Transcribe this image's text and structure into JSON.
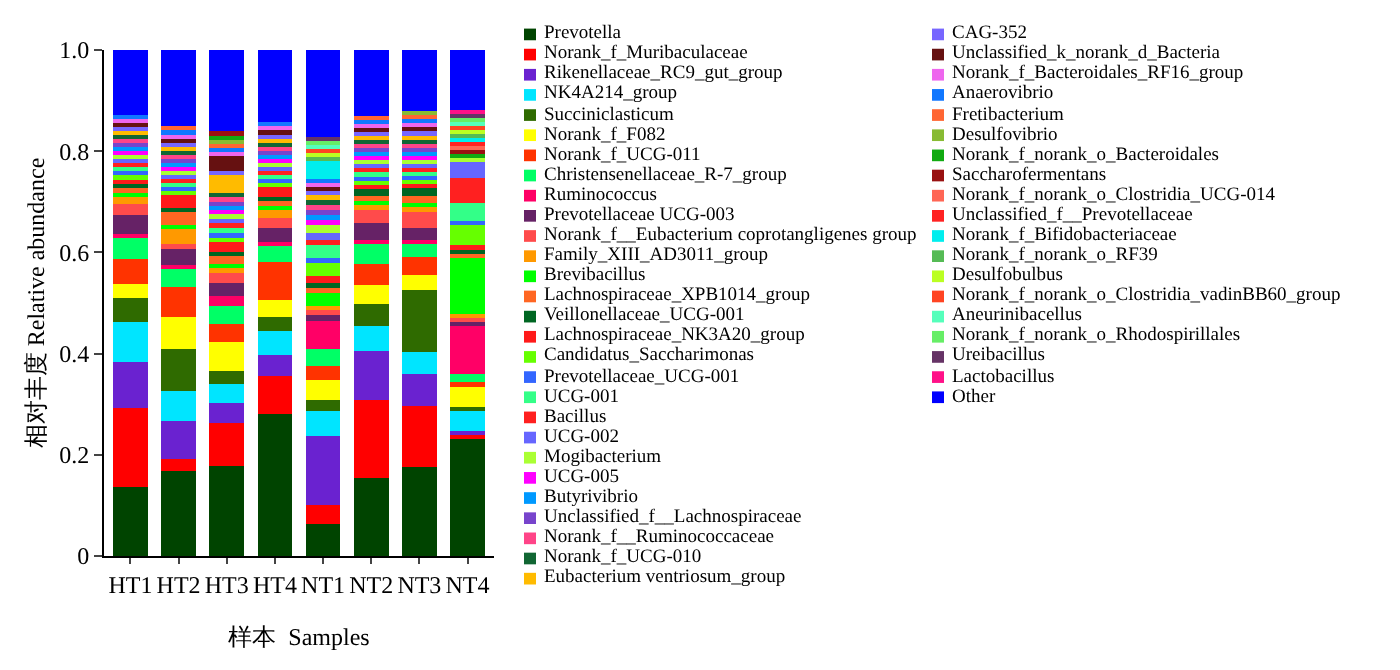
{
  "chart_data": {
    "type": "bar",
    "stacked": true,
    "xlabel": "样本  Samples",
    "ylabel": "相对丰度 Relative abundance",
    "categories": [
      "HT1",
      "HT2",
      "HT3",
      "HT4",
      "NT1",
      "NT2",
      "NT3",
      "NT4"
    ],
    "ylim": [
      0,
      1
    ],
    "yticks": [
      0,
      0.2,
      0.4,
      0.6,
      0.8,
      {
        "value": 1,
        "label": "1.0"
      }
    ],
    "legend": "right",
    "series": [
      {
        "name": "Prevotella",
        "color": "#004400",
        "values": [
          0.136,
          0.168,
          0.177,
          0.281,
          0.064,
          0.155,
          0.176,
          0.232
        ]
      },
      {
        "name": "Norank_f_Muribaculaceae",
        "color": "#ff0000",
        "values": [
          0.156,
          0.023,
          0.085,
          0.075,
          0.037,
          0.153,
          0.121,
          0.008
        ]
      },
      {
        "name": "Rikenellaceae_RC9_gut_group",
        "color": "#6a22d0",
        "values": [
          0.091,
          0.076,
          0.041,
          0.041,
          0.137,
          0.097,
          0.062,
          0.008
        ]
      },
      {
        "name": "NK4A214_group",
        "color": "#00e5ff",
        "values": [
          0.08,
          0.059,
          0.037,
          0.047,
          0.048,
          0.05,
          0.045,
          0.038
        ]
      },
      {
        "name": "Succiniclasticum",
        "color": "#2f6b00",
        "values": [
          0.047,
          0.084,
          0.025,
          0.028,
          0.023,
          0.044,
          0.122,
          0.008
        ]
      },
      {
        "name": "Norank_f_F082",
        "color": "#ffff00",
        "values": [
          0.028,
          0.062,
          0.058,
          0.033,
          0.038,
          0.037,
          0.029,
          0.04
        ]
      },
      {
        "name": "Norank_f_UCG-011",
        "color": "#ff3300",
        "values": [
          0.049,
          0.059,
          0.035,
          0.077,
          0.029,
          0.042,
          0.035,
          0.01
        ]
      },
      {
        "name": "Christensenellaceae_R-7_group",
        "color": "#00ff66",
        "values": [
          0.041,
          0.037,
          0.036,
          0.031,
          0.033,
          0.039,
          0.027,
          0.015
        ]
      },
      {
        "name": "Ruminococcus",
        "color": "#ff0066",
        "values": [
          0.008,
          0.008,
          0.019,
          0.008,
          0.055,
          0.008,
          0.008,
          0.096
        ]
      },
      {
        "name": "Prevotellaceae UCG-003",
        "color": "#662266",
        "values": [
          0.037,
          0.031,
          0.027,
          0.027,
          0.012,
          0.033,
          0.024,
          0.008
        ]
      },
      {
        "name": "Norank_f__Eubacterium coprotangligenes group",
        "color": "#ff4b4b",
        "values": [
          0.022,
          0.01,
          0.02,
          0.02,
          0.01,
          0.025,
          0.03,
          0.008
        ]
      },
      {
        "name": "Family_XIII_AD3011_group",
        "color": "#ff9900",
        "values": [
          0.015,
          0.03,
          0.01,
          0.015,
          0.008,
          0.01,
          0.01,
          0.008
        ]
      },
      {
        "name": "Brevibacillus",
        "color": "#00ff00",
        "values": [
          0.008,
          0.008,
          0.008,
          0.008,
          0.025,
          0.008,
          0.008,
          0.11
        ]
      },
      {
        "name": "Lachnospiraceae_XPB1014_group",
        "color": "#ff6622",
        "values": [
          0.01,
          0.025,
          0.015,
          0.01,
          0.01,
          0.01,
          0.015,
          0.008
        ]
      },
      {
        "name": "Veillonellaceae_UCG-001",
        "color": "#006622",
        "values": [
          0.008,
          0.008,
          0.008,
          0.008,
          0.01,
          0.015,
          0.015,
          0.008
        ]
      },
      {
        "name": "Lachnospiraceae_NK3A20_group",
        "color": "#ff1a1a",
        "values": [
          0.008,
          0.025,
          0.02,
          0.02,
          0.015,
          0.008,
          0.008,
          0.01
        ]
      },
      {
        "name": "Candidatus_Saccharimonas",
        "color": "#66ff00",
        "values": [
          0.008,
          0.008,
          0.008,
          0.008,
          0.025,
          0.008,
          0.008,
          0.04
        ]
      },
      {
        "name": "Prevotellaceae_UCG-001",
        "color": "#3366ff",
        "values": [
          0.008,
          0.008,
          0.01,
          0.008,
          0.01,
          0.008,
          0.008,
          0.008
        ]
      },
      {
        "name": "UCG-001",
        "color": "#33ff88",
        "values": [
          0.008,
          0.008,
          0.01,
          0.008,
          0.025,
          0.008,
          0.008,
          0.035
        ]
      },
      {
        "name": "Bacillus",
        "color": "#ff2020",
        "values": [
          0.008,
          0.008,
          0.01,
          0.008,
          0.01,
          0.008,
          0.008,
          0.05
        ]
      },
      {
        "name": "UCG-002",
        "color": "#6666ff",
        "values": [
          0.008,
          0.008,
          0.008,
          0.008,
          0.015,
          0.008,
          0.008,
          0.03
        ]
      },
      {
        "name": "Mogibacterium",
        "color": "#aaff33",
        "values": [
          0.008,
          0.008,
          0.008,
          0.008,
          0.015,
          0.008,
          0.008,
          0.008
        ]
      },
      {
        "name": "UCG-005",
        "color": "#ff00ff",
        "values": [
          0.008,
          0.008,
          0.008,
          0.008,
          0.01,
          0.008,
          0.008,
          null
        ]
      },
      {
        "name": "Butyrivibrio",
        "color": "#0099ff",
        "values": [
          0.008,
          0.008,
          0.008,
          0.008,
          0.01,
          0.008,
          0.008,
          null
        ]
      },
      {
        "name": "Unclassified_f__Lachnospiraceae",
        "color": "#7744cc",
        "values": [
          0.008,
          0.008,
          0.008,
          0.008,
          0.01,
          0.008,
          0.008,
          null
        ]
      },
      {
        "name": "Norank_f__Ruminococcaceae",
        "color": "#ff4488",
        "values": [
          0.008,
          0.008,
          0.01,
          0.008,
          0.01,
          0.008,
          0.008,
          null
        ]
      },
      {
        "name": "Norank_f_UCG-010",
        "color": "#116633",
        "values": [
          0.008,
          0.008,
          0.008,
          0.008,
          0.01,
          0.008,
          0.008,
          null
        ]
      },
      {
        "name": "Eubacterium ventriosum_group",
        "color": "#ffbb00",
        "values": [
          0.008,
          0.008,
          0.035,
          0.008,
          0.01,
          0.008,
          0.008,
          null
        ]
      },
      {
        "name": "CAG-352",
        "color": "#7766ff",
        "values": [
          0.008,
          0.008,
          0.008,
          0.008,
          0.008,
          0.008,
          0.008,
          null
        ]
      },
      {
        "name": "Unclassified_k_norank_d_Bacteria",
        "color": "#661111",
        "values": [
          0.008,
          0.008,
          0.03,
          0.008,
          0.008,
          0.008,
          0.008,
          null
        ]
      },
      {
        "name": "Norank_f_Bacteroidales_RF16_group",
        "color": "#ee66ee",
        "values": [
          0.008,
          0.008,
          0.008,
          0.008,
          0.008,
          0.008,
          0.008,
          null
        ]
      },
      {
        "name": "Anaerovibrio",
        "color": "#1177ff",
        "values": [
          0.008,
          0.008,
          0.008,
          0.008,
          0.008,
          0.008,
          0.008,
          null
        ]
      },
      {
        "name": "Fretibacterium",
        "color": "#ff6633",
        "values": [
          null,
          0.008,
          0.008,
          null,
          null,
          0.008,
          0.008,
          null
        ]
      },
      {
        "name": "Desulfovibrio",
        "color": "#88bb33",
        "values": [
          null,
          null,
          0.008,
          null,
          null,
          null,
          0.008,
          null
        ]
      },
      {
        "name": "Norank_f_norank_o_Bacteroidales",
        "color": "#11aa11",
        "values": [
          null,
          null,
          0.008,
          null,
          null,
          null,
          null,
          0.008
        ]
      },
      {
        "name": "Saccharofermentans",
        "color": "#991111",
        "values": [
          null,
          null,
          0.01,
          null,
          null,
          null,
          null,
          0.008
        ]
      },
      {
        "name": "Norank_f_norank_o_Clostridia_UCG-014",
        "color": "#ff6655",
        "values": [
          null,
          null,
          null,
          null,
          null,
          null,
          null,
          0.008
        ]
      },
      {
        "name": "Unclassified_f__Prevotellaceae",
        "color": "#ff2222",
        "values": [
          null,
          null,
          null,
          null,
          null,
          null,
          null,
          0.008
        ]
      },
      {
        "name": "Norank_f_Bifidobacteriaceae",
        "color": "#00eeee",
        "values": [
          null,
          null,
          null,
          null,
          0.035,
          null,
          null,
          0.008
        ]
      },
      {
        "name": "Norank_f_norank_o_RF39",
        "color": "#55bb55",
        "values": [
          null,
          null,
          null,
          null,
          0.008,
          null,
          null,
          0.008
        ]
      },
      {
        "name": "Desulfobulbus",
        "color": "#bbff22",
        "values": [
          null,
          null,
          null,
          null,
          0.008,
          null,
          null,
          0.008
        ]
      },
      {
        "name": "Norank_f_norank_o_Clostridia_vadinBB60_group",
        "color": "#ff4422",
        "values": [
          null,
          null,
          null,
          null,
          0.008,
          null,
          null,
          0.008
        ]
      },
      {
        "name": "Aneurinibacellus",
        "color": "#55ffbb",
        "values": [
          null,
          null,
          null,
          null,
          0.008,
          null,
          null,
          0.008
        ]
      },
      {
        "name": "Norank_f_norank_o_Rhodospirillales",
        "color": "#66ee66",
        "values": [
          null,
          null,
          null,
          null,
          0.008,
          null,
          null,
          0.008
        ]
      },
      {
        "name": "Ureibacillus",
        "color": "#663366",
        "values": [
          null,
          null,
          null,
          null,
          0.008,
          null,
          null,
          0.008
        ]
      },
      {
        "name": "Lactobacillus",
        "color": "#ff1188",
        "values": [
          null,
          null,
          null,
          null,
          null,
          null,
          null,
          0.008
        ]
      },
      {
        "name": "Other",
        "color": "#0000ff",
        "values": [
          0.128,
          0.151,
          0.16,
          0.143,
          0.171,
          0.13,
          0.121,
          0.118
        ]
      }
    ]
  }
}
